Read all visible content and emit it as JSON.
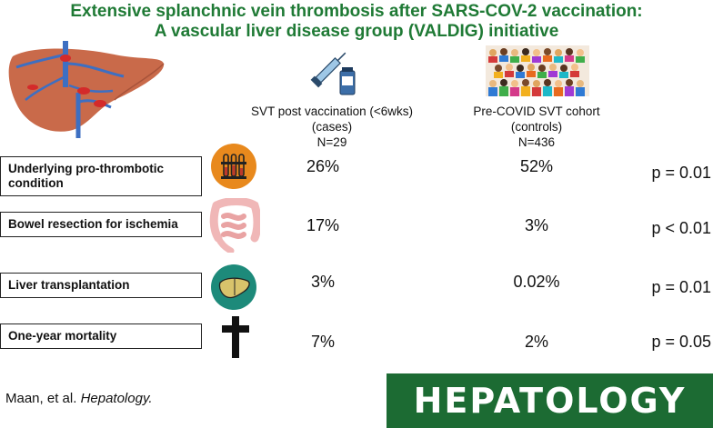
{
  "header": {
    "title_line1": "Extensive splanchnic vein thrombosis after SARS-COV-2 vaccination:",
    "title_line2": "A vascular liver disease group (VALDIG) initiative"
  },
  "columns": [
    {
      "label_lines": [
        "SVT post vaccination (<6wks)",
        "(cases)",
        "N=29"
      ],
      "icon": "syringe-vaccine-icon"
    },
    {
      "label_lines": [
        "Pre-COVID SVT cohort",
        "(controls)",
        "N=436"
      ],
      "icon": "crowd-icon"
    }
  ],
  "rows": [
    {
      "label": "Underlying pro-thrombotic condition",
      "icon": "test-tubes-icon",
      "cases": "26%",
      "controls": "52%",
      "p": "p = 0.01"
    },
    {
      "label": "Bowel resection for ischemia",
      "icon": "intestine-icon",
      "cases": "17%",
      "controls": "3%",
      "p": "p < 0.01"
    },
    {
      "label": "Liver transplantation",
      "icon": "liver-icon",
      "cases": "3%",
      "controls": "0.02%",
      "p": "p = 0.01"
    },
    {
      "label": "One-year mortality",
      "icon": "cross-icon",
      "cases": "7%",
      "controls": "2%",
      "p": "p = 0.05"
    }
  ],
  "footer": {
    "citation_authors": "Maan, et al.",
    "citation_journal": "Hepatology.",
    "logo_text": "HEPATOLOGY"
  },
  "colors": {
    "title": "#1f7a35",
    "logo_bg": "#1c6b33",
    "icon_orange": "#e8891d",
    "icon_teal": "#1d8a7a",
    "liver": "#c96a4a"
  }
}
